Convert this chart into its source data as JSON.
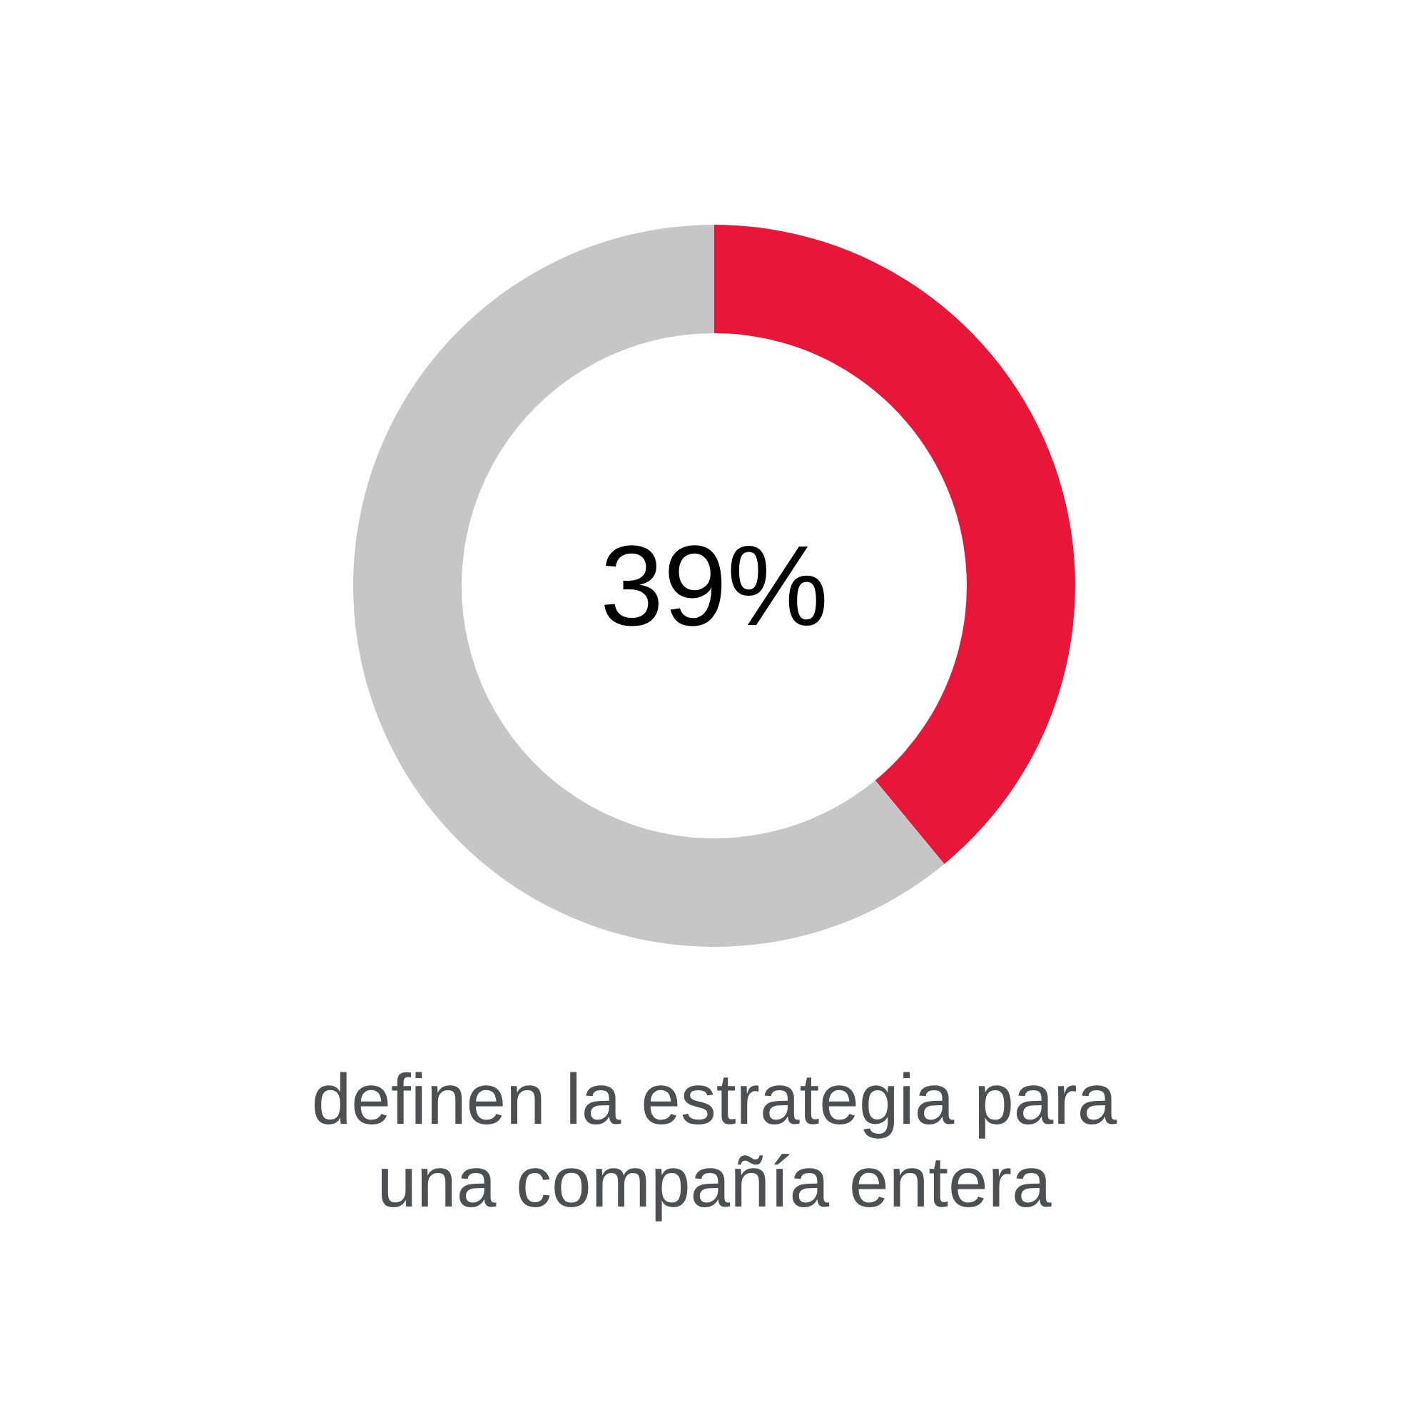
{
  "chart_data": {
    "type": "donut",
    "categories": [
      null,
      null
    ],
    "values": [
      39,
      61
    ],
    "colors": [
      "#e8173a",
      "#c6c6c6"
    ],
    "value_labels": [
      "39%",
      null
    ],
    "annotations": [
      "definen la estrategia para una compañía entera"
    ]
  }
}
